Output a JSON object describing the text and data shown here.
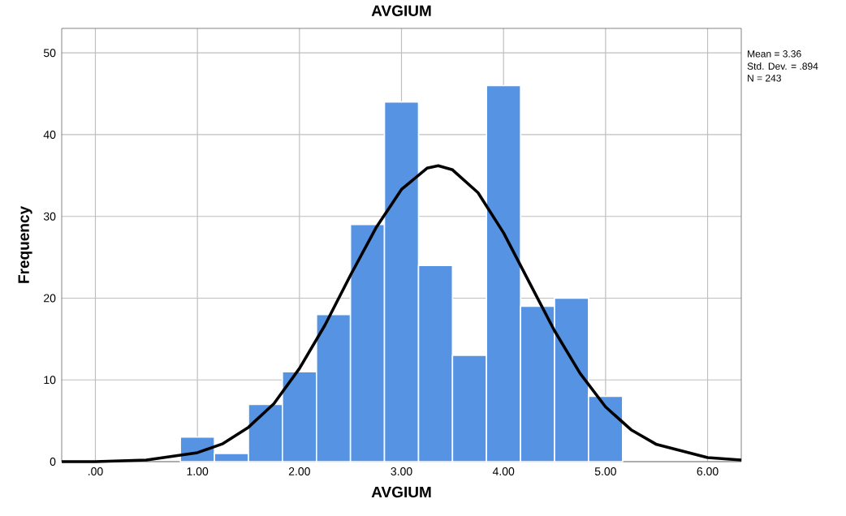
{
  "chart_data": {
    "type": "histogram",
    "title": "AVGIUM",
    "xlabel": "AVGIUM",
    "ylabel": "Frequency",
    "series": [
      {
        "color": "#5694e3",
        "bins": [
          0.833,
          1.167,
          1.5,
          1.833,
          2.167,
          2.5,
          2.833,
          3.167,
          3.5,
          3.833,
          4.167,
          4.5,
          4.833,
          5.167
        ],
        "values": [
          3,
          1,
          7,
          11,
          18,
          29,
          44,
          24,
          13,
          46,
          19,
          20,
          8
        ]
      },
      {
        "type": "line",
        "color": "#000000",
        "x": [
          -0.33,
          0,
          0.5,
          1,
          1.25,
          1.5,
          1.75,
          2,
          2.25,
          2.5,
          2.75,
          3,
          3.25,
          3.36,
          3.5,
          3.75,
          4,
          4.25,
          4.5,
          4.75,
          5,
          5.25,
          5.5,
          6,
          6.33
        ],
        "values": [
          0,
          0,
          0.2,
          1.1,
          2.2,
          4.2,
          7.1,
          11.4,
          16.7,
          22.8,
          28.6,
          33.3,
          35.9,
          36.2,
          35.7,
          32.9,
          28,
          22,
          16,
          10.8,
          6.7,
          3.9,
          2.1,
          0.5,
          0.2
        ]
      }
    ],
    "xlim": [
      -0.33,
      6.33
    ],
    "ylim": [
      0,
      53
    ],
    "xticks": [
      {
        "value": 0,
        "label": ".00"
      },
      {
        "value": 1,
        "label": "1.00"
      },
      {
        "value": 2,
        "label": "2.00"
      },
      {
        "value": 3,
        "label": "3.00"
      },
      {
        "value": 4,
        "label": "4.00"
      },
      {
        "value": 5,
        "label": "5.00"
      },
      {
        "value": 6,
        "label": "6.00"
      }
    ],
    "yticks": [
      0,
      10,
      20,
      30,
      40,
      50
    ],
    "grid": true,
    "annotations": [
      "Mean = 3.36",
      "Std. Dev. = .894",
      "N = 243"
    ]
  }
}
